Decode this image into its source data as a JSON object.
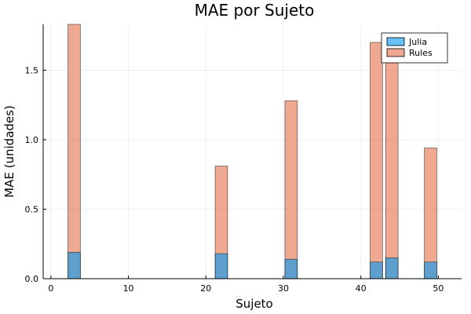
{
  "chart_data": {
    "type": "bar",
    "title": "MAE por Sujeto",
    "xlabel": "Sujeto",
    "ylabel": "MAE (unidades)",
    "xlim": [
      -1,
      53
    ],
    "ylim": [
      0,
      1.83
    ],
    "xticks": [
      0,
      10,
      20,
      30,
      40,
      50
    ],
    "yticks": [
      0.0,
      0.5,
      1.0,
      1.5
    ],
    "ytick_labels": [
      "0.0",
      "0.5",
      "1.0",
      "1.5"
    ],
    "grid": true,
    "legend_position": "top-right",
    "bar_width": 1.6,
    "x": [
      3,
      22,
      31,
      42,
      44,
      49
    ],
    "series": [
      {
        "name": "Julia",
        "color": "#009af9",
        "values": [
          0.19,
          0.18,
          0.14,
          0.12,
          0.15,
          0.12
        ]
      },
      {
        "name": "Rules",
        "color": "#e26f46",
        "values": [
          1.83,
          0.81,
          1.28,
          1.7,
          1.67,
          0.94
        ]
      }
    ]
  }
}
